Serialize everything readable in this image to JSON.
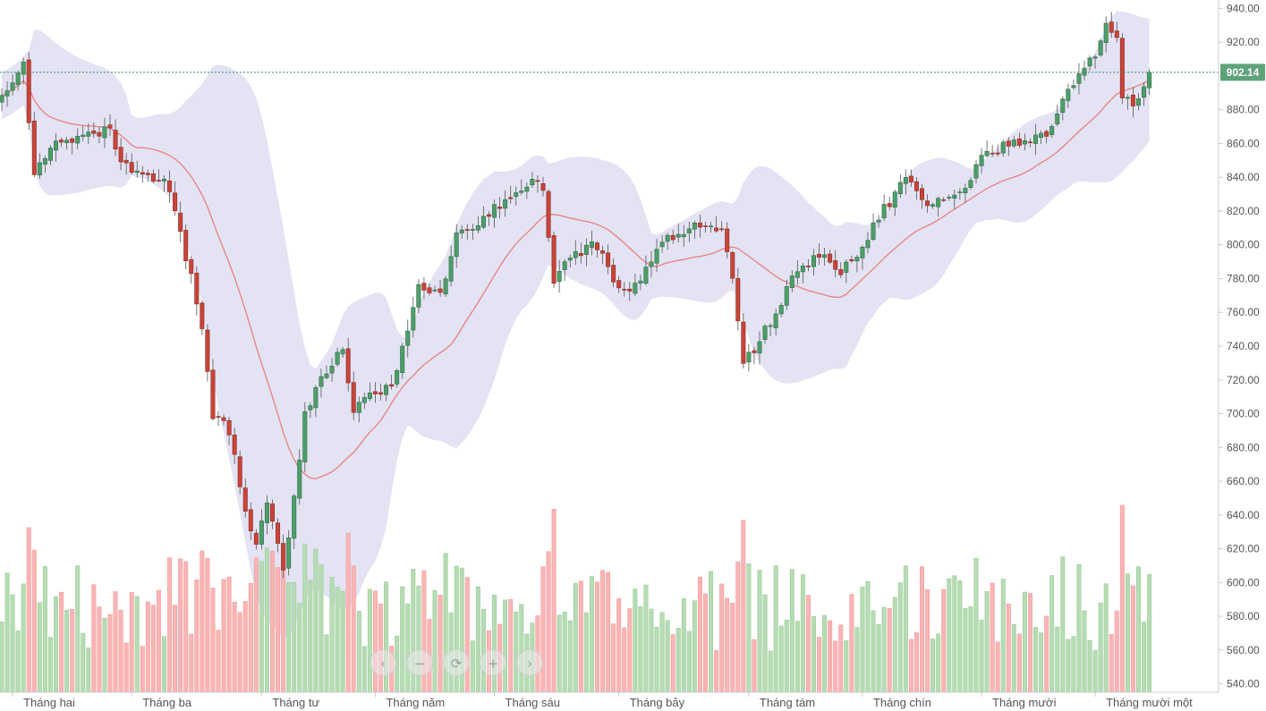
{
  "chart_data": {
    "type": "candlestick",
    "y_axis": {
      "min": 535,
      "max": 945,
      "position": "right",
      "ticks": [
        "540.00",
        "560.00",
        "580.00",
        "600.00",
        "620.00",
        "640.00",
        "660.00",
        "680.00",
        "700.00",
        "720.00",
        "740.00",
        "760.00",
        "780.00",
        "800.00",
        "820.00",
        "840.00",
        "860.00",
        "880.00",
        "900.00",
        "920.00",
        "940.00"
      ]
    },
    "x_axis": {
      "months": [
        "Tháng hai",
        "Tháng ba",
        "Tháng tư",
        "Tháng năm",
        "Tháng sáu",
        "Tháng bảy",
        "Tháng tám",
        "Tháng chín",
        "Tháng mười",
        "Tháng mười một"
      ],
      "month_start_index": [
        2,
        24,
        48,
        69,
        91,
        114,
        138,
        159,
        181,
        202
      ]
    },
    "last_price": {
      "value": 902.14,
      "label": "902.14"
    },
    "close_waypoints": [
      [
        0,
        890
      ],
      [
        2,
        898
      ],
      [
        4,
        908
      ],
      [
        5,
        875
      ],
      [
        6,
        842
      ],
      [
        9,
        858
      ],
      [
        12,
        860
      ],
      [
        16,
        864
      ],
      [
        20,
        868
      ],
      [
        22,
        848
      ],
      [
        26,
        840
      ],
      [
        30,
        838
      ],
      [
        32,
        820
      ],
      [
        35,
        780
      ],
      [
        37,
        750
      ],
      [
        39,
        700
      ],
      [
        42,
        690
      ],
      [
        45,
        640
      ],
      [
        47,
        625
      ],
      [
        49,
        648
      ],
      [
        52,
        608
      ],
      [
        54,
        650
      ],
      [
        56,
        700
      ],
      [
        59,
        720
      ],
      [
        63,
        738
      ],
      [
        65,
        700
      ],
      [
        68,
        712
      ],
      [
        72,
        715
      ],
      [
        74,
        740
      ],
      [
        77,
        775
      ],
      [
        81,
        770
      ],
      [
        84,
        805
      ],
      [
        87,
        810
      ],
      [
        91,
        822
      ],
      [
        96,
        832
      ],
      [
        98,
        838
      ],
      [
        100,
        832
      ],
      [
        102,
        780
      ],
      [
        105,
        792
      ],
      [
        109,
        800
      ],
      [
        112,
        790
      ],
      [
        114,
        772
      ],
      [
        116,
        770
      ],
      [
        119,
        785
      ],
      [
        123,
        805
      ],
      [
        126,
        808
      ],
      [
        130,
        812
      ],
      [
        133,
        808
      ],
      [
        135,
        780
      ],
      [
        137,
        730
      ],
      [
        139,
        738
      ],
      [
        141,
        750
      ],
      [
        143,
        760
      ],
      [
        146,
        780
      ],
      [
        149,
        788
      ],
      [
        151,
        795
      ],
      [
        155,
        785
      ],
      [
        158,
        792
      ],
      [
        161,
        812
      ],
      [
        165,
        830
      ],
      [
        167,
        840
      ],
      [
        170,
        825
      ],
      [
        174,
        825
      ],
      [
        178,
        832
      ],
      [
        181,
        852
      ],
      [
        185,
        858
      ],
      [
        189,
        862
      ],
      [
        193,
        865
      ],
      [
        196,
        885
      ],
      [
        199,
        900
      ],
      [
        202,
        912
      ],
      [
        204,
        930
      ],
      [
        206,
        925
      ],
      [
        207,
        888
      ],
      [
        209,
        882
      ],
      [
        211,
        895
      ],
      [
        212,
        902
      ]
    ],
    "volume_scale": {
      "min": 0,
      "max": 100
    }
  },
  "nav": {
    "prev": "‹",
    "zoom_out": "−",
    "reset": "⟳",
    "zoom_in": "+",
    "next": "›"
  },
  "colors": {
    "up": "#4a9a66",
    "up_fill": "#4f9d69",
    "down": "#c0392b",
    "down_fill": "#c8443a",
    "vol_up": "#b6dcb4",
    "vol_down": "#f9b5b5",
    "band": "#dadaf0",
    "ma": "#e88080",
    "last_price_bg": "#5ea27a",
    "last_price_line": "#3d8b5f"
  }
}
